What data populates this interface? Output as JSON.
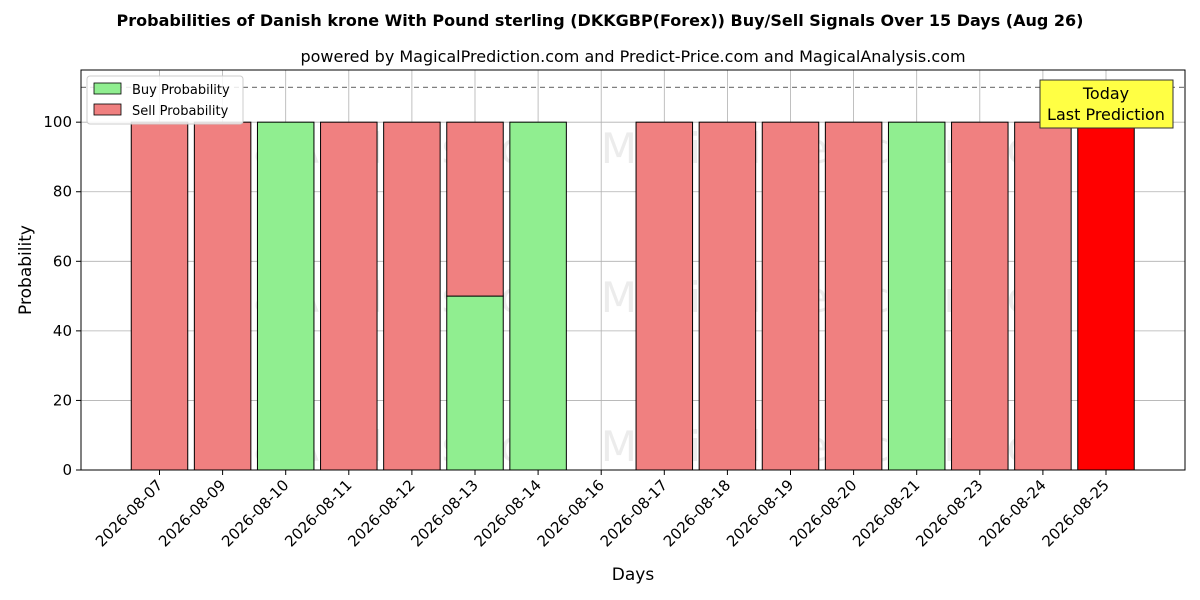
{
  "title": "Probabilities of Danish krone With Pound sterling (DKKGBP(Forex)) Buy/Sell Signals Over 15 Days (Aug 26)",
  "subtitle": "powered by MagicalPrediction.com and Predict-Price.com and MagicalAnalysis.com",
  "watermarks": [
    "MagicalAnalysis.com",
    "MagicalPrediction.com"
  ],
  "annotation": {
    "lines": [
      "Today",
      "Last Prediction"
    ],
    "color": "#ffff44"
  },
  "legend": {
    "position": "upper left",
    "items": [
      {
        "label": "Buy Probability",
        "color": "#90ee90"
      },
      {
        "label": "Sell Probability",
        "color": "#f08080"
      }
    ]
  },
  "colors": {
    "buy": "#90ee90",
    "sell": "#f08080",
    "today": "#ff0000",
    "edge": "#000000",
    "grid": "#b0b0b0"
  },
  "chart_data": {
    "type": "bar",
    "stacked": true,
    "xlabel": "Days",
    "ylabel": "Probability",
    "ylim": [
      0,
      115
    ],
    "yticks": [
      0,
      20,
      40,
      60,
      80,
      100
    ],
    "grid": true,
    "reference_line": {
      "y": 110,
      "style": "dashed"
    },
    "categories": [
      "2026-08-07",
      "2026-08-09",
      "2026-08-10",
      "2026-08-11",
      "2026-08-12",
      "2026-08-13",
      "2026-08-14",
      "2026-08-16",
      "2026-08-17",
      "2026-08-18",
      "2026-08-19",
      "2026-08-20",
      "2026-08-21",
      "2026-08-23",
      "2026-08-24",
      "2026-08-25"
    ],
    "series": [
      {
        "name": "Buy Probability",
        "values": [
          0,
          0,
          100,
          0,
          0,
          50,
          100,
          0,
          0,
          0,
          0,
          0,
          100,
          0,
          0,
          0
        ]
      },
      {
        "name": "Sell Probability",
        "values": [
          100,
          100,
          0,
          100,
          100,
          50,
          0,
          0,
          100,
          100,
          100,
          100,
          0,
          100,
          100,
          100
        ]
      }
    ],
    "highlight_last": true
  }
}
